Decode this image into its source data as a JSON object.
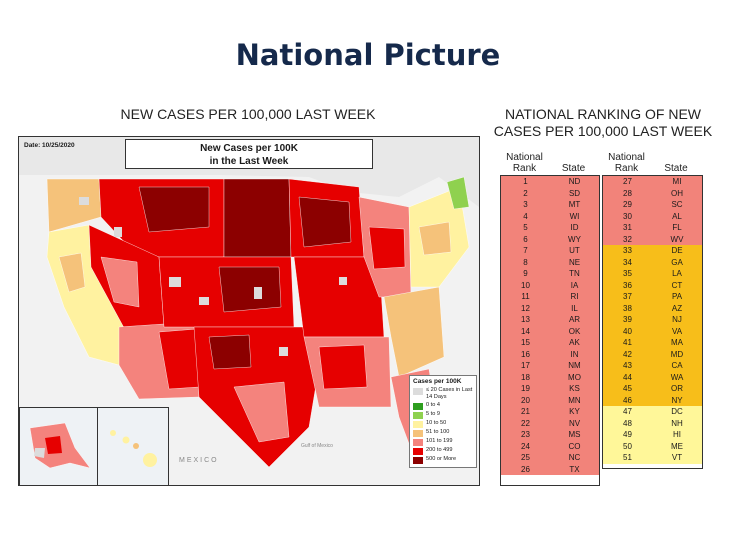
{
  "page": {
    "title": "National Picture"
  },
  "map": {
    "heading": "NEW CASES PER 100,000 LAST WEEK",
    "date": "Date: 10/25/2020",
    "title_line1": "New Cases per 100K",
    "title_line2": "in the Last Week",
    "mexico_label": "MEXICO",
    "gulf_label": "Gulf of Mexico",
    "legend": {
      "title": "Cases per 100K",
      "items": [
        {
          "label": "≤ 20 Cases in Last 14 Days",
          "color": "#dcdcdc"
        },
        {
          "label": "0 to 4",
          "color": "#2e9e1f"
        },
        {
          "label": "5 to 9",
          "color": "#8fd14f"
        },
        {
          "label": "10 to 50",
          "color": "#fff2a0"
        },
        {
          "label": "51 to 100",
          "color": "#f5c27a"
        },
        {
          "label": "101 to 199",
          "color": "#f4837d"
        },
        {
          "label": "200 to 499",
          "color": "#e60000"
        },
        {
          "label": "500 or More",
          "color": "#8c0000"
        }
      ]
    }
  },
  "ranking": {
    "heading_line1": "NATIONAL RANKING OF NEW",
    "heading_line2": "CASES PER 100,000 LAST WEEK",
    "col_national": "National",
    "col_rank": "Rank",
    "col_state": "State",
    "column1": [
      {
        "rank": "1",
        "state": "ND",
        "tier": "red"
      },
      {
        "rank": "2",
        "state": "SD",
        "tier": "red"
      },
      {
        "rank": "3",
        "state": "MT",
        "tier": "red"
      },
      {
        "rank": "4",
        "state": "WI",
        "tier": "red"
      },
      {
        "rank": "5",
        "state": "ID",
        "tier": "red"
      },
      {
        "rank": "6",
        "state": "WY",
        "tier": "red"
      },
      {
        "rank": "7",
        "state": "UT",
        "tier": "red"
      },
      {
        "rank": "8",
        "state": "NE",
        "tier": "red"
      },
      {
        "rank": "9",
        "state": "TN",
        "tier": "red"
      },
      {
        "rank": "10",
        "state": "IA",
        "tier": "red"
      },
      {
        "rank": "11",
        "state": "RI",
        "tier": "red"
      },
      {
        "rank": "12",
        "state": "IL",
        "tier": "red"
      },
      {
        "rank": "13",
        "state": "AR",
        "tier": "red"
      },
      {
        "rank": "14",
        "state": "OK",
        "tier": "red"
      },
      {
        "rank": "15",
        "state": "AK",
        "tier": "red"
      },
      {
        "rank": "16",
        "state": "IN",
        "tier": "red"
      },
      {
        "rank": "17",
        "state": "NM",
        "tier": "red"
      },
      {
        "rank": "18",
        "state": "MO",
        "tier": "red"
      },
      {
        "rank": "19",
        "state": "KS",
        "tier": "red"
      },
      {
        "rank": "20",
        "state": "MN",
        "tier": "red"
      },
      {
        "rank": "21",
        "state": "KY",
        "tier": "red"
      },
      {
        "rank": "22",
        "state": "NV",
        "tier": "red"
      },
      {
        "rank": "23",
        "state": "MS",
        "tier": "red"
      },
      {
        "rank": "24",
        "state": "CO",
        "tier": "red"
      },
      {
        "rank": "25",
        "state": "NC",
        "tier": "red"
      },
      {
        "rank": "26",
        "state": "TX",
        "tier": "red"
      }
    ],
    "column2": [
      {
        "rank": "27",
        "state": "MI",
        "tier": "red"
      },
      {
        "rank": "28",
        "state": "OH",
        "tier": "red"
      },
      {
        "rank": "29",
        "state": "SC",
        "tier": "red"
      },
      {
        "rank": "30",
        "state": "AL",
        "tier": "red"
      },
      {
        "rank": "31",
        "state": "FL",
        "tier": "red"
      },
      {
        "rank": "32",
        "state": "WV",
        "tier": "red"
      },
      {
        "rank": "33",
        "state": "DE",
        "tier": "orange"
      },
      {
        "rank": "34",
        "state": "GA",
        "tier": "orange"
      },
      {
        "rank": "35",
        "state": "LA",
        "tier": "orange"
      },
      {
        "rank": "36",
        "state": "CT",
        "tier": "orange"
      },
      {
        "rank": "37",
        "state": "PA",
        "tier": "orange"
      },
      {
        "rank": "38",
        "state": "AZ",
        "tier": "orange"
      },
      {
        "rank": "39",
        "state": "NJ",
        "tier": "orange"
      },
      {
        "rank": "40",
        "state": "VA",
        "tier": "orange"
      },
      {
        "rank": "41",
        "state": "MA",
        "tier": "orange"
      },
      {
        "rank": "42",
        "state": "MD",
        "tier": "orange"
      },
      {
        "rank": "43",
        "state": "CA",
        "tier": "orange"
      },
      {
        "rank": "44",
        "state": "WA",
        "tier": "orange"
      },
      {
        "rank": "45",
        "state": "OR",
        "tier": "orange"
      },
      {
        "rank": "46",
        "state": "NY",
        "tier": "orange"
      },
      {
        "rank": "47",
        "state": "DC",
        "tier": "yellow"
      },
      {
        "rank": "48",
        "state": "NH",
        "tier": "yellow"
      },
      {
        "rank": "49",
        "state": "HI",
        "tier": "yellow"
      },
      {
        "rank": "50",
        "state": "ME",
        "tier": "yellow"
      },
      {
        "rank": "51",
        "state": "VT",
        "tier": "yellow"
      }
    ]
  }
}
